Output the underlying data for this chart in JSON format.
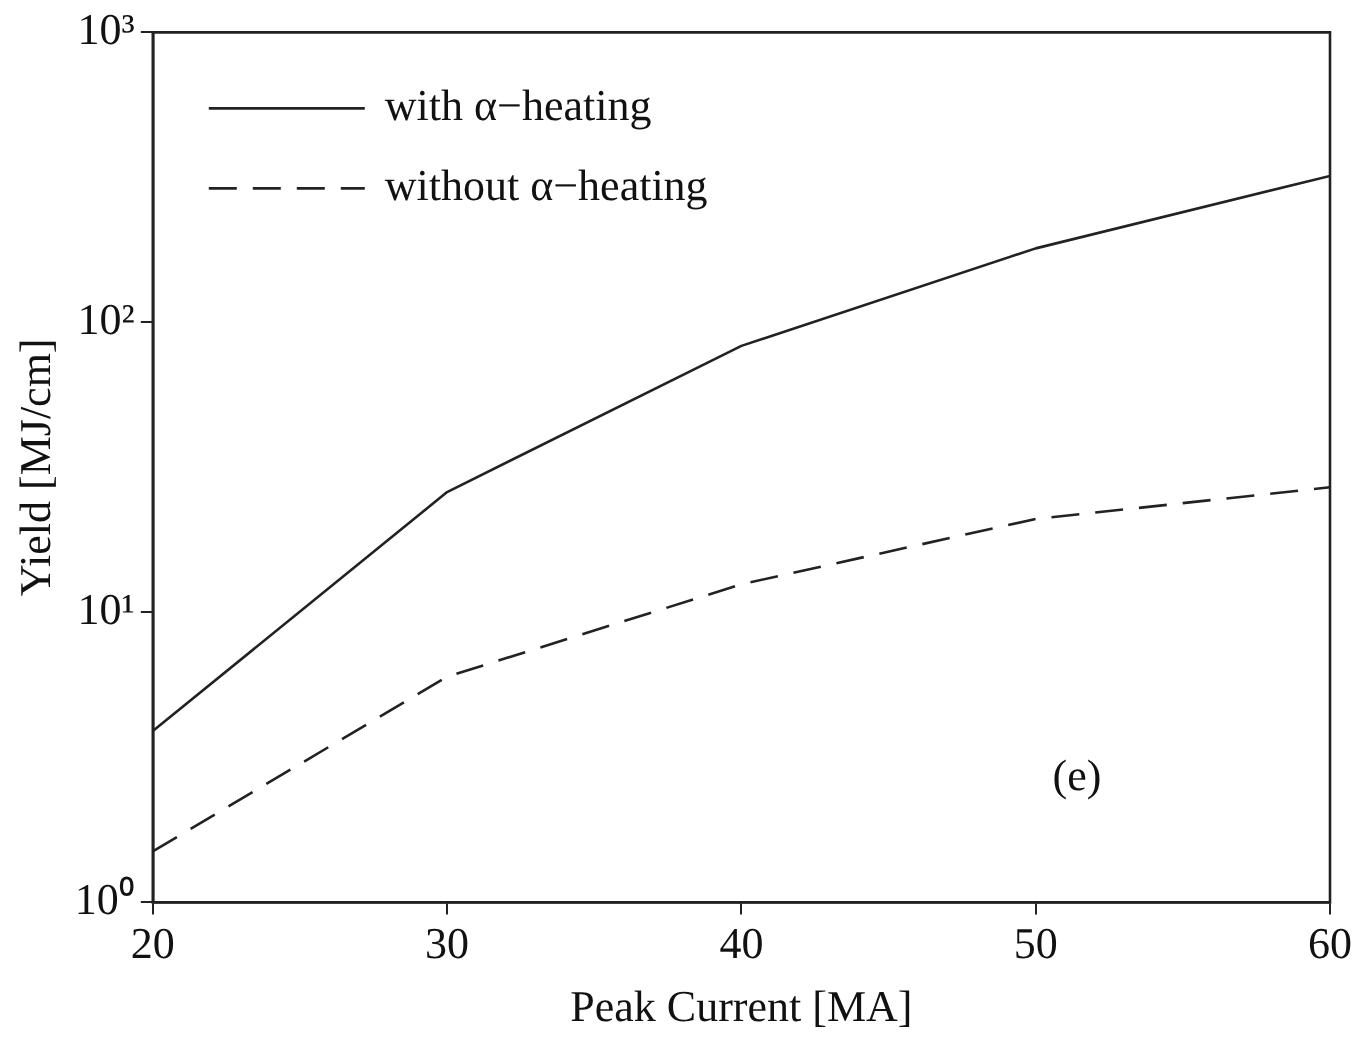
{
  "chart_data": {
    "type": "line",
    "xlabel": "Peak Current [MA]",
    "ylabel": "Yield [MJ/cm]",
    "x": [
      20,
      30,
      40,
      50,
      60
    ],
    "series": [
      {
        "name": "with α−heating",
        "color": "#222222",
        "line_style": "solid",
        "values": [
          3.9,
          26,
          83,
          180,
          320
        ]
      },
      {
        "name": "without α−heating",
        "color": "#222222",
        "line_style": "dashed",
        "values": [
          1.5,
          6,
          12.5,
          21,
          27
        ]
      }
    ],
    "log": "y",
    "xlim": [
      20,
      60
    ],
    "xticks": [
      20,
      30,
      40,
      50,
      60
    ],
    "ylim": [
      1,
      1000
    ],
    "yticks": [
      {
        "value": 1,
        "label": "10⁰"
      },
      {
        "value": 10,
        "label": "10¹"
      },
      {
        "value": 100,
        "label": "10²"
      },
      {
        "value": 1000,
        "label": "10³"
      }
    ],
    "grid": false,
    "legend": "top left",
    "marker": "none",
    "annotations": [
      "(e)"
    ]
  }
}
